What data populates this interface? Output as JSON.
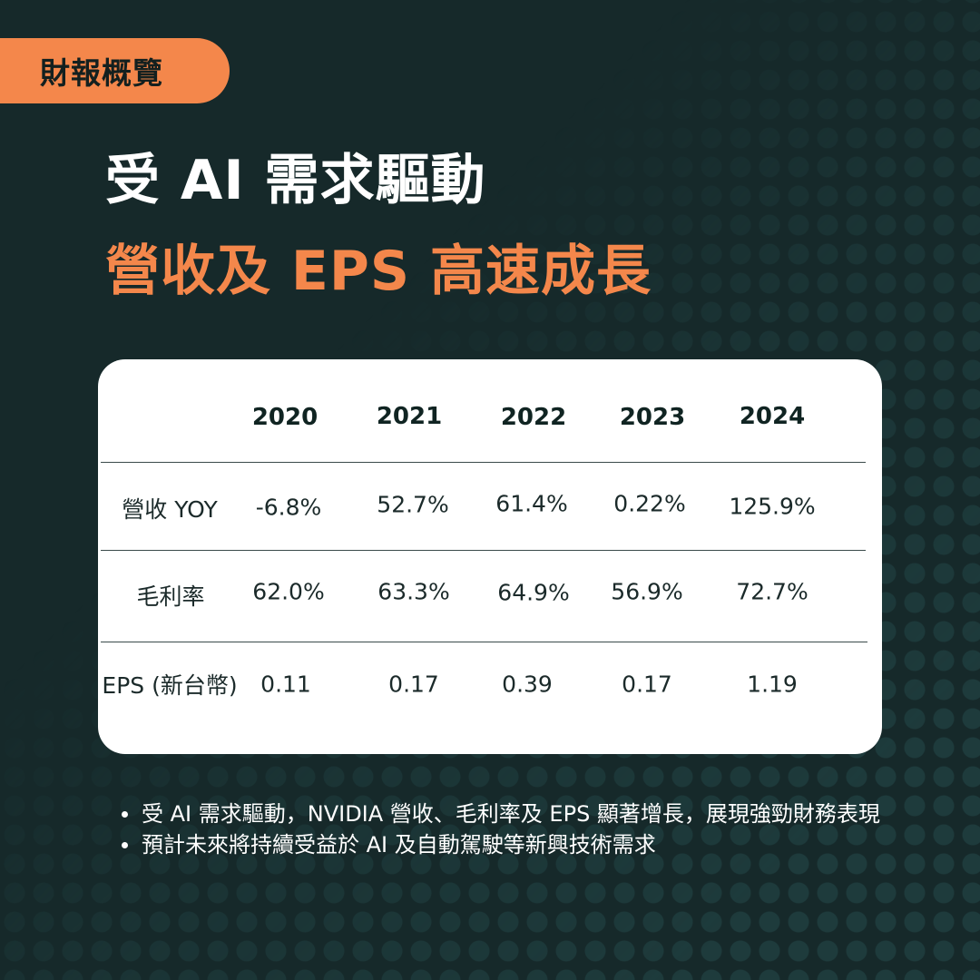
{
  "tag": "財報概覽",
  "title": {
    "line1": "受 AI 需求驅動",
    "line2": "營收及 EPS 高速成長"
  },
  "table": {
    "years": [
      "2020",
      "2021",
      "2022",
      "2023",
      "2024"
    ],
    "rows": [
      {
        "label": "營收 YOY",
        "values": [
          "-6.8%",
          "52.7%",
          "61.4%",
          "0.22%",
          "125.9%"
        ]
      },
      {
        "label": "毛利率",
        "values": [
          "62.0%",
          "63.3%",
          "64.9%",
          "56.9%",
          "72.7%"
        ]
      },
      {
        "label": "EPS (新台幣)",
        "values": [
          "0.11",
          "0.17",
          "0.39",
          "0.17",
          "1.19"
        ]
      }
    ]
  },
  "notes": [
    "受 AI 需求驅動，NVIDIA 營收、毛利率及 EPS 顯著增長，展現強勁財務表現",
    "預計未來將持續受益於 AI 及自動駕駛等新興技術需求"
  ],
  "colors": {
    "background": "#16292a",
    "accent": "#f4874b",
    "card": "#ffffff"
  }
}
